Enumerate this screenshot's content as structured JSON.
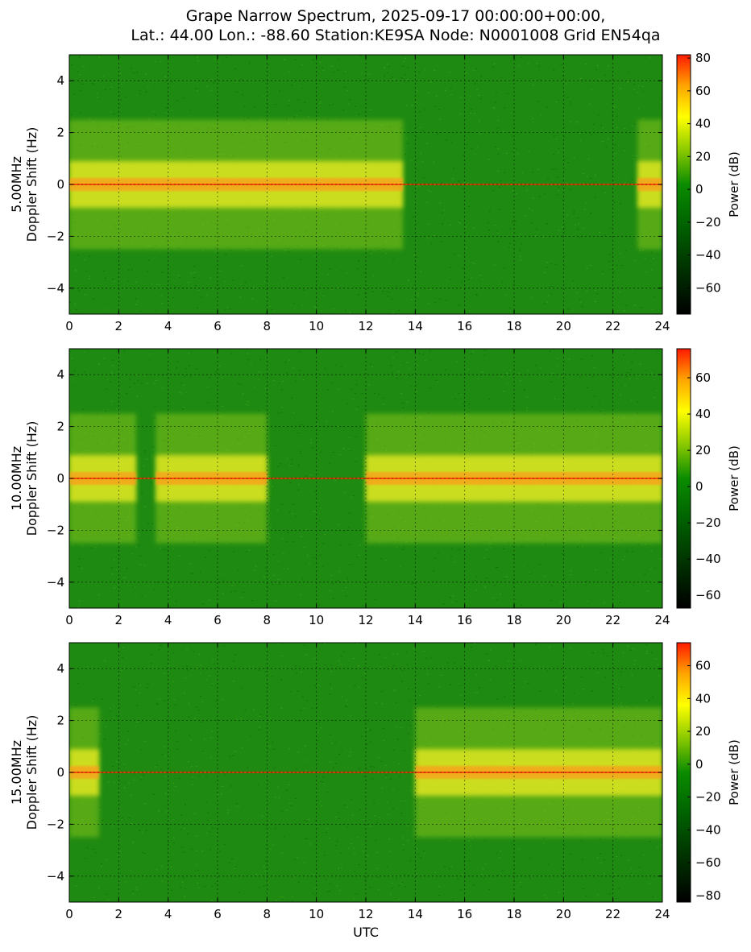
{
  "figure": {
    "title_line1": "Grape Narrow Spectrum, 2025-09-17 00:00:00+00:00,",
    "title_line2": "Lat.: 44.00 Lon.: -88.60 Station:KE9SA Node: N0001008 Grid EN54qa",
    "xlabel": "UTC"
  },
  "colors": {
    "cmap": [
      "#000000",
      "#006400",
      "#008000",
      "#ffff00",
      "#ff0000"
    ],
    "background_green": "#1f8a12",
    "carrier": "#ff2a00"
  },
  "chart_data": [
    {
      "type": "heatmap",
      "ylabel_line1": "5.00MHz",
      "ylabel_line2": "Doppler Shift (Hz)",
      "colorbar_label": "Power (dB)",
      "xlim": [
        0,
        24
      ],
      "ylim": [
        -5,
        5
      ],
      "xticks": [
        0,
        2,
        4,
        6,
        8,
        10,
        12,
        14,
        16,
        18,
        20,
        22,
        24
      ],
      "yticks": [
        -4,
        -2,
        0,
        2,
        4
      ],
      "clim": [
        -76,
        82
      ],
      "cticks": [
        -60,
        -40,
        -20,
        0,
        20,
        40,
        60,
        80
      ],
      "grid": true,
      "signal_active_utc": [
        [
          0,
          13.5
        ],
        [
          23,
          24
        ]
      ],
      "carrier_doppler_hz": 0.0
    },
    {
      "type": "heatmap",
      "ylabel_line1": "10.00MHz",
      "ylabel_line2": "Doppler Shift (Hz)",
      "colorbar_label": "Power (dB)",
      "xlim": [
        0,
        24
      ],
      "ylim": [
        -5,
        5
      ],
      "xticks": [
        0,
        2,
        4,
        6,
        8,
        10,
        12,
        14,
        16,
        18,
        20,
        22,
        24
      ],
      "yticks": [
        -4,
        -2,
        0,
        2,
        4
      ],
      "clim": [
        -67,
        76
      ],
      "cticks": [
        -60,
        -40,
        -20,
        0,
        20,
        40,
        60
      ],
      "grid": true,
      "signal_active_utc": [
        [
          0,
          2.7
        ],
        [
          3.5,
          8
        ],
        [
          12,
          24
        ]
      ],
      "carrier_doppler_hz": 0.0
    },
    {
      "type": "heatmap",
      "ylabel_line1": "15.00MHz",
      "ylabel_line2": "Doppler Shift (Hz)",
      "colorbar_label": "Power (dB)",
      "xlim": [
        0,
        24
      ],
      "ylim": [
        -5,
        5
      ],
      "xticks": [
        0,
        2,
        4,
        6,
        8,
        10,
        12,
        14,
        16,
        18,
        20,
        22,
        24
      ],
      "yticks": [
        -4,
        -2,
        0,
        2,
        4
      ],
      "clim": [
        -84,
        74
      ],
      "cticks": [
        -80,
        -60,
        -40,
        -20,
        0,
        20,
        40,
        60
      ],
      "grid": true,
      "signal_active_utc": [
        [
          0,
          1.2
        ],
        [
          14,
          24
        ]
      ],
      "carrier_doppler_hz": 0.0
    }
  ]
}
